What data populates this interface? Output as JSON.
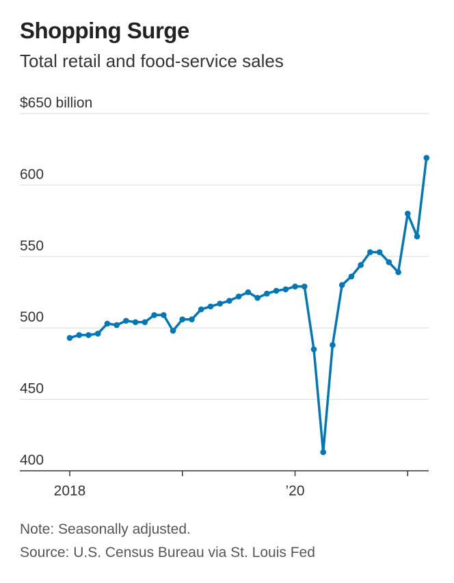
{
  "header": {
    "title": "Shopping Surge",
    "subtitle": "Total retail and food-service sales"
  },
  "footer": {
    "note": "Note: Seasonally adjusted.",
    "source": "Source: U.S. Census Bureau via St. Louis Fed"
  },
  "colors": {
    "line": "#0277b5",
    "grid": "#d9d9d9",
    "axis": "#333333",
    "tick_text": "#333333"
  },
  "chart_data": {
    "type": "line",
    "title": "Shopping Surge",
    "subtitle": "Total retail and food-service sales",
    "ylabel": "",
    "xlabel": "",
    "ylim": [
      400,
      650
    ],
    "yticks": [
      {
        "value": 650,
        "label": "$650 billion"
      },
      {
        "value": 600,
        "label": "600"
      },
      {
        "value": 550,
        "label": "550"
      },
      {
        "value": 500,
        "label": "500"
      },
      {
        "value": 450,
        "label": "450"
      },
      {
        "value": 400,
        "label": "400"
      }
    ],
    "xticks": [
      {
        "index": 0,
        "label": "2018"
      },
      {
        "index": 12,
        "label": ""
      },
      {
        "index": 24,
        "label": "’20"
      },
      {
        "index": 36,
        "label": ""
      }
    ],
    "series": [
      {
        "name": "Total retail and food-service sales",
        "unit": "$ billion",
        "values": [
          493,
          495,
          495,
          496,
          503,
          502,
          505,
          504,
          504,
          509,
          509,
          498,
          506,
          506,
          513,
          515,
          517,
          519,
          522,
          525,
          521,
          524,
          526,
          527,
          529,
          529,
          485,
          413,
          488,
          530,
          536,
          544,
          553,
          553,
          546,
          539,
          580,
          564,
          619
        ]
      }
    ]
  }
}
